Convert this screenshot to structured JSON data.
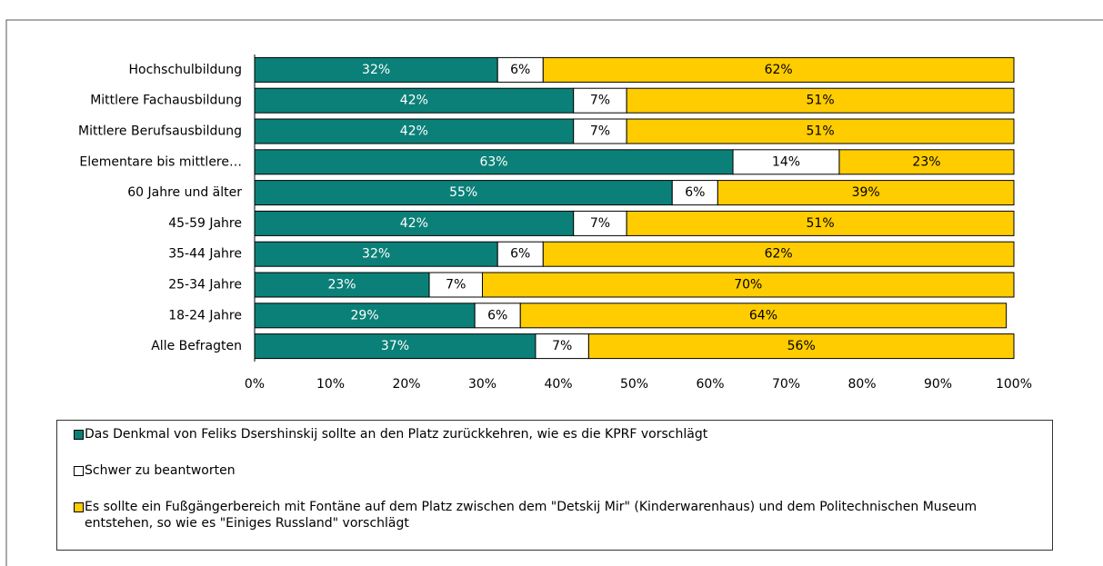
{
  "chart_data": {
    "type": "stacked-barh",
    "categories": [
      "Hochschulbildung",
      "Mittlere Fachausbildung",
      "Mittlere Berufsausbildung",
      "Elementare bis mittlere…",
      "60 Jahre und älter",
      "45-59 Jahre",
      "35-44 Jahre",
      "25-34 Jahre",
      "18-24 Jahre",
      "Alle Befragten"
    ],
    "series": [
      {
        "name": "Das Denkmal von Feliks Dsershinskij sollte an den Platz zurückkehren, wie es die KPRF vorschlägt",
        "color": "#0b8078",
        "values": [
          32,
          42,
          42,
          63,
          55,
          42,
          32,
          23,
          29,
          37
        ],
        "value_labels": [
          "32%",
          "42%",
          "42%",
          "63%",
          "55%",
          "42%",
          "32%",
          "23%",
          "29%",
          "37%"
        ]
      },
      {
        "name": "Schwer zu beantworten",
        "color": "#ffffff",
        "values": [
          6,
          7,
          7,
          14,
          6,
          7,
          6,
          7,
          6,
          7
        ],
        "value_labels": [
          "6%",
          "7%",
          "7%",
          "14%",
          "6%",
          "7%",
          "6%",
          "7%",
          "6%",
          "7%"
        ]
      },
      {
        "name": "Es sollte ein Fußgängerbereich mit Fontäne auf dem Platz zwischen dem \"Detskij Mir\" (Kinderwarenhaus) und dem Politechnischen Museum entstehen, so wie es \"Einiges Russland\" vorschlägt",
        "color": "#ffcc00",
        "values": [
          62,
          51,
          51,
          23,
          39,
          51,
          62,
          70,
          64,
          56
        ],
        "value_labels": [
          "62%",
          "51%",
          "51%",
          "23%",
          "39%",
          "51%",
          "62%",
          "70%",
          "64%",
          "56%"
        ]
      }
    ],
    "xlim": [
      0,
      100
    ],
    "xticks": [
      {
        "value": 0,
        "label": "0%"
      },
      {
        "value": 10,
        "label": "10%"
      },
      {
        "value": 20,
        "label": "20%"
      },
      {
        "value": 30,
        "label": "30%"
      },
      {
        "value": 40,
        "label": "40%"
      },
      {
        "value": 50,
        "label": "50%"
      },
      {
        "value": 60,
        "label": "60%"
      },
      {
        "value": 70,
        "label": "70%"
      },
      {
        "value": 80,
        "label": "80%"
      },
      {
        "value": 90,
        "label": "90%"
      },
      {
        "value": 100,
        "label": "100%"
      }
    ],
    "grid": false
  }
}
